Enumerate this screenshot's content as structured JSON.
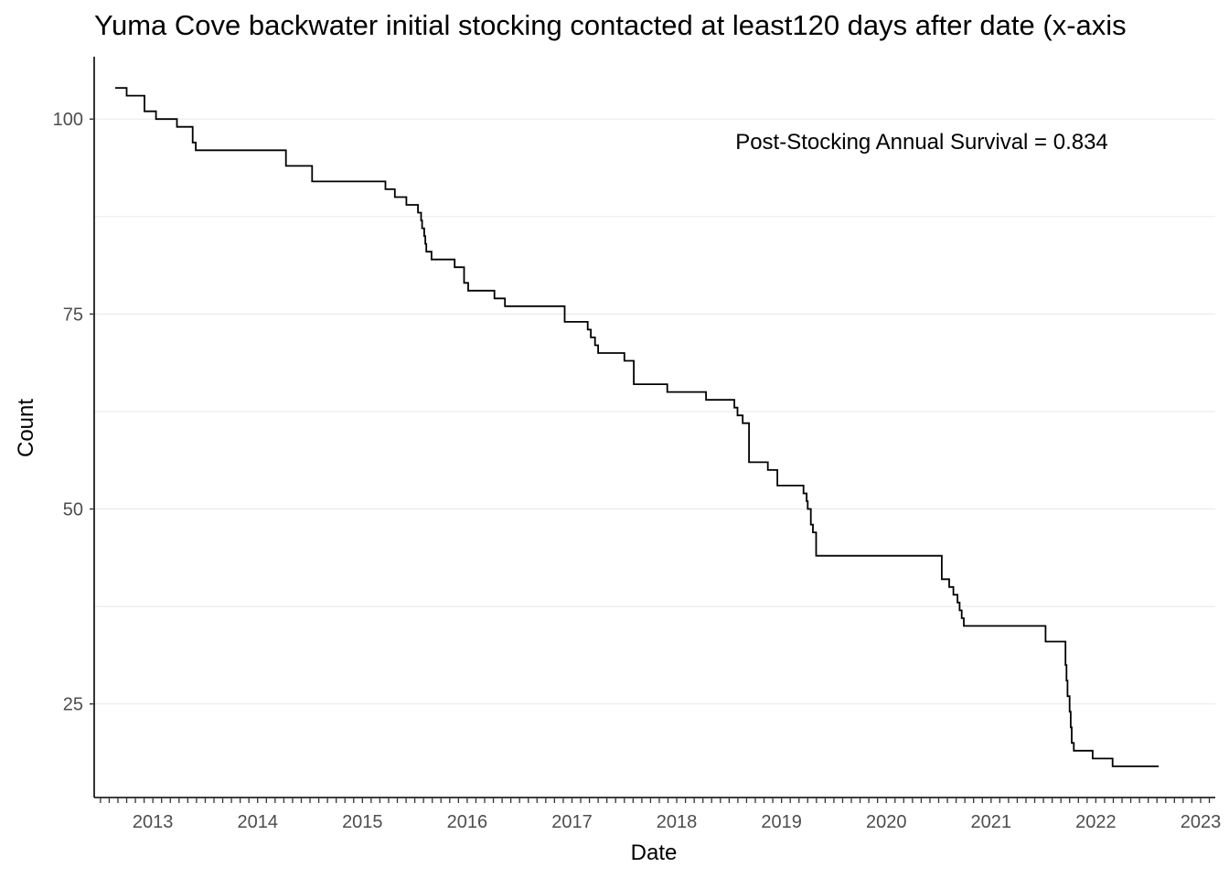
{
  "chart_data": {
    "type": "line",
    "step": true,
    "title": "Yuma Cove backwater initial stocking contacted at least120 days after date (x-axis",
    "xlabel": "Date",
    "ylabel": "Count",
    "annotation": "Post-Stocking Annual Survival = 0.834",
    "x_ticks": [
      "2013",
      "2014",
      "2015",
      "2016",
      "2017",
      "2018",
      "2019",
      "2020",
      "2021",
      "2022",
      "2023"
    ],
    "y_ticks": [
      25,
      50,
      75,
      100
    ],
    "xlim": [
      2012.94,
      2023.64
    ],
    "ylim": [
      13,
      108
    ],
    "grid": "horizontal",
    "line_color": "#000000",
    "grid_color": "#ebebeb",
    "series": [
      {
        "x": [
          2013.14,
          2013.25,
          2013.42,
          2013.53,
          2013.73,
          2013.88,
          2013.91,
          2014.77,
          2015.02,
          2015.72,
          2015.81,
          2015.92,
          2016.03,
          2016.06,
          2016.07,
          2016.09,
          2016.1,
          2016.11,
          2016.16,
          2016.24,
          2016.38,
          2016.47,
          2016.51,
          2016.55,
          2016.76,
          2016.86,
          2017.43,
          2017.65,
          2017.68,
          2017.72,
          2017.75,
          2018.0,
          2018.09,
          2018.41,
          2018.78,
          2019.05,
          2019.08,
          2019.13,
          2019.19,
          2019.37,
          2019.46,
          2019.71,
          2019.74,
          2019.75,
          2019.78,
          2019.8,
          2019.83,
          2021.03,
          2021.1,
          2021.14,
          2021.18,
          2021.2,
          2021.22,
          2021.24,
          2021.27,
          2022.02,
          2022.21,
          2022.22,
          2022.23,
          2022.25,
          2022.26,
          2022.27,
          2022.29,
          2022.47,
          2022.66,
          2023.1
        ],
        "y": [
          104,
          103,
          101,
          100,
          99,
          97,
          96,
          94,
          92,
          91,
          90,
          89,
          88,
          87,
          86,
          85,
          84,
          83,
          82,
          82,
          81,
          79,
          78,
          78,
          77,
          76,
          74,
          73,
          72,
          71,
          70,
          69,
          66,
          65,
          64,
          63,
          62,
          61,
          56,
          55,
          53,
          52,
          51,
          50,
          48,
          47,
          44,
          41,
          40,
          39,
          38,
          37,
          36,
          35,
          35,
          33,
          30,
          28,
          26,
          24,
          22,
          20,
          19,
          18,
          17,
          17
        ]
      }
    ]
  }
}
